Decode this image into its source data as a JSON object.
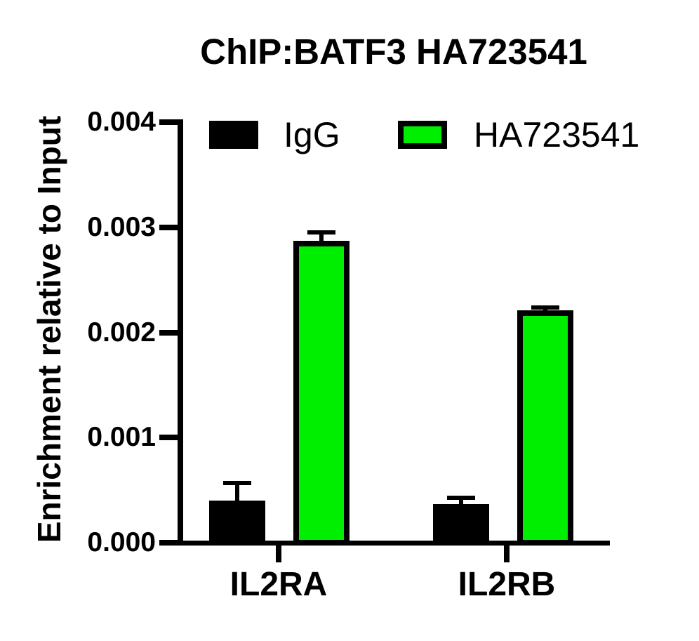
{
  "title": "ChIP:BATF3 HA723541",
  "y_axis": {
    "label": "Enrichment relative to Input",
    "tick_labels": [
      "0.000",
      "0.001",
      "0.002",
      "0.003",
      "0.004"
    ]
  },
  "x_axis": {
    "category_labels": [
      "IL2RA",
      "IL2RB"
    ]
  },
  "legend": {
    "items": [
      "IgG",
      "HA723541"
    ]
  },
  "colors": {
    "igg": "#000000",
    "ha723541": "#00ee00",
    "axis": "#000000",
    "background": "#ffffff"
  },
  "chart_data": {
    "type": "bar",
    "title": "ChIP:BATF3 HA723541",
    "xlabel": "",
    "ylabel": "Enrichment relative to Input",
    "categories": [
      "IL2RA",
      "IL2RB"
    ],
    "series": [
      {
        "name": "IgG",
        "color": "#000000",
        "values": [
          0.0004,
          0.00037
        ],
        "errors_sd_upper": [
          0.00017,
          6e-05
        ]
      },
      {
        "name": "HA723541",
        "color": "#00ee00",
        "values": [
          0.00287,
          0.00221
        ],
        "errors_sd_upper": [
          8e-05,
          3e-05
        ]
      }
    ],
    "ylim": [
      0,
      0.004
    ],
    "yticks": [
      0,
      0.001,
      0.002,
      0.003,
      0.004
    ],
    "ytick_labels": [
      "0.000",
      "0.001",
      "0.002",
      "0.003",
      "0.004"
    ],
    "grid": false,
    "legend_position": "top",
    "error_bars": "upper only, capped"
  }
}
